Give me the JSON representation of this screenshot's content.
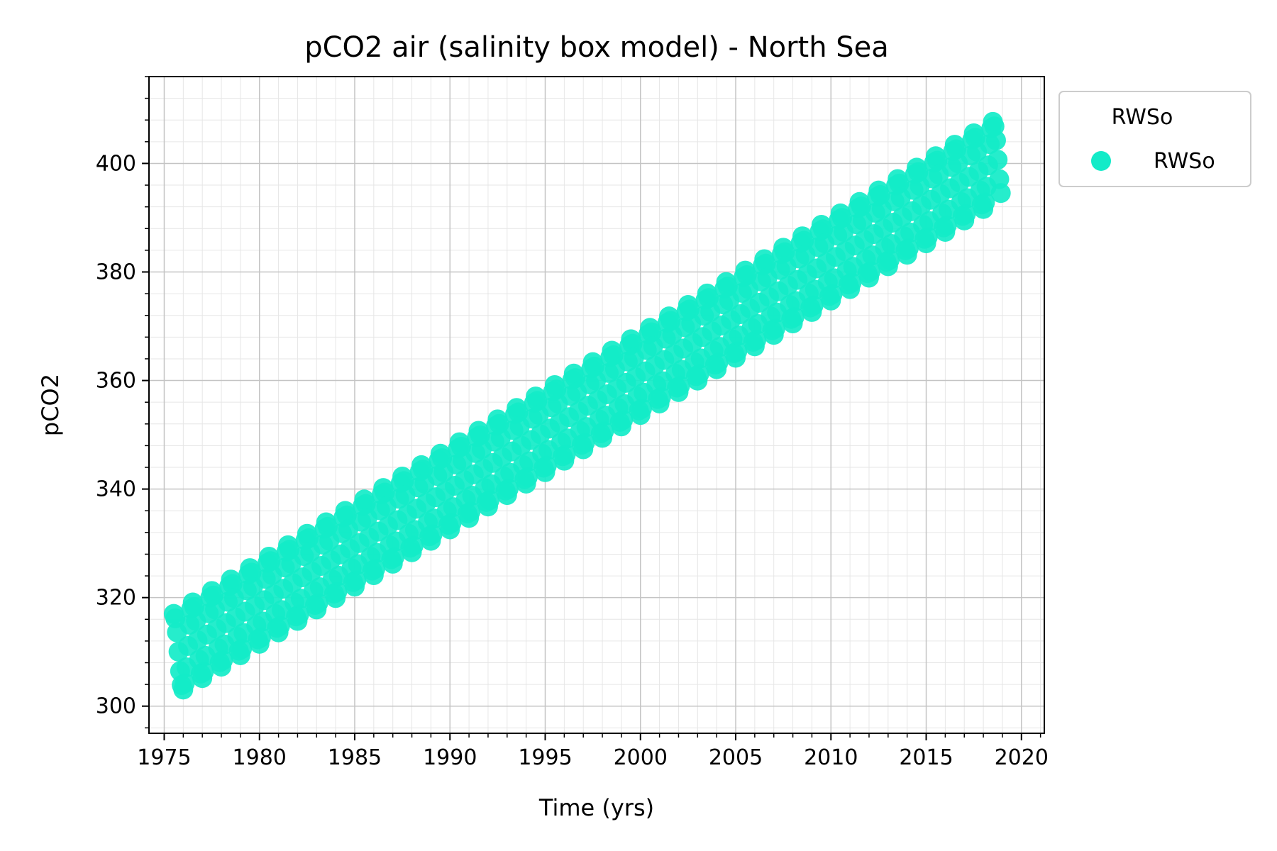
{
  "chart_data": {
    "type": "scatter",
    "title": "pCO2 air (salinity box model) - North Sea",
    "xlabel": "Time (yrs)",
    "ylabel": "pCO2",
    "xlim": [
      1974.2,
      2021.2
    ],
    "ylim": [
      295,
      416
    ],
    "xticks": [
      1975,
      1980,
      1985,
      1990,
      1995,
      2000,
      2005,
      2010,
      2015,
      2020
    ],
    "yticks": [
      300,
      320,
      340,
      360,
      380,
      400
    ],
    "grid": true,
    "legend": {
      "title": "RWSo",
      "placement": "outside-top-right"
    },
    "series": [
      {
        "name": "RWSo",
        "color": "#13ebc8",
        "x_start": 1975.5,
        "x_end": 2018.9,
        "samples_per_year": 12,
        "trend_start": 309.5,
        "trend_end": 401,
        "seasonal_amplitude": 7.5
      }
    ]
  }
}
